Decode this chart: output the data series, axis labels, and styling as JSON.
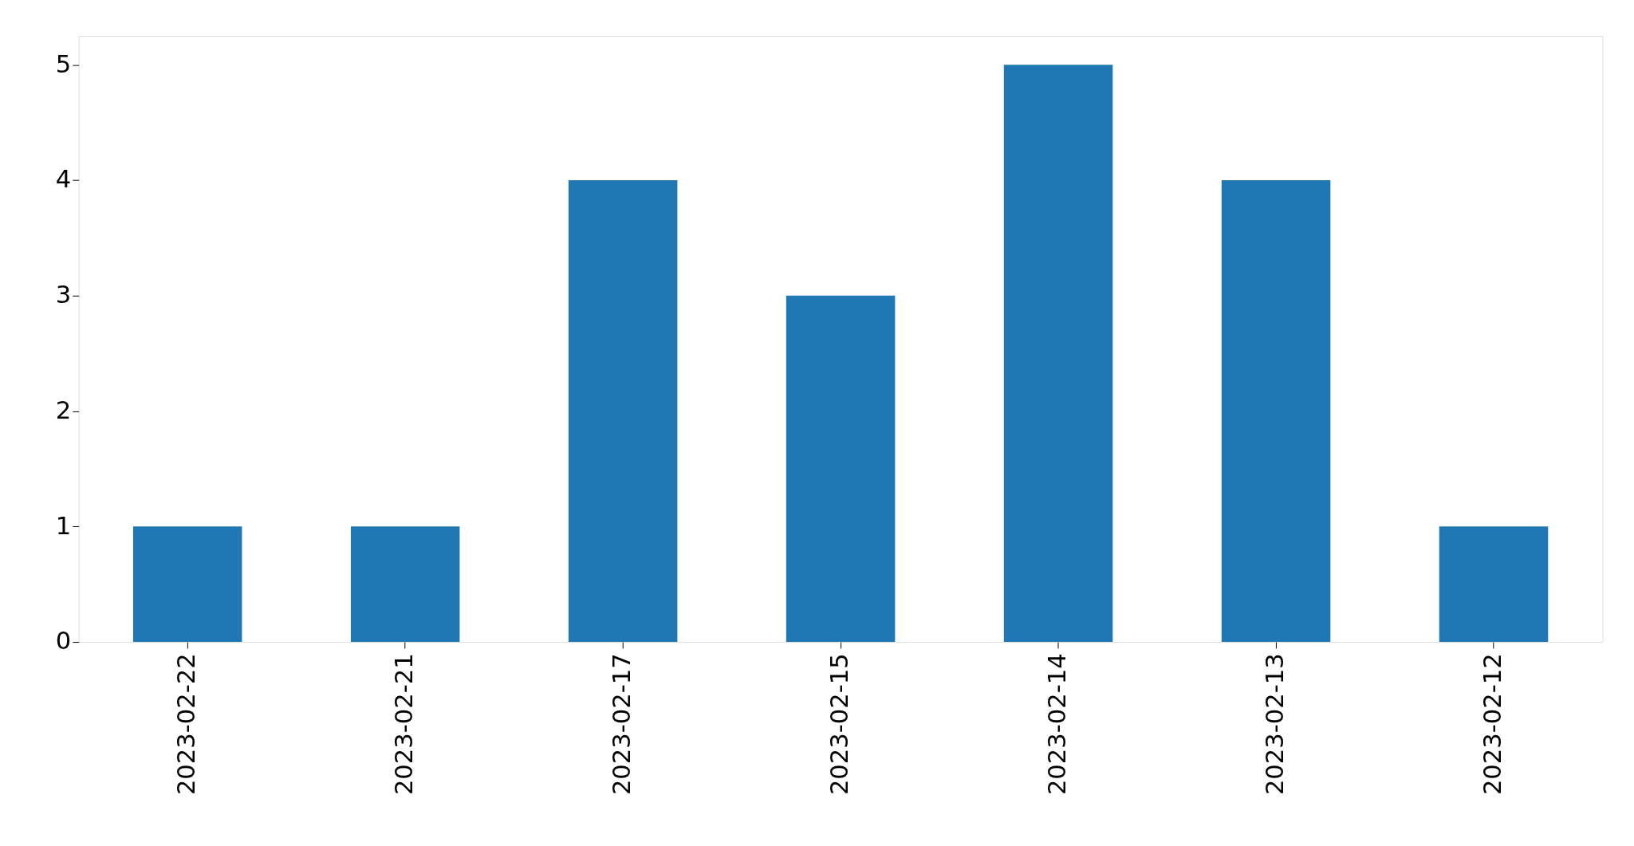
{
  "chart_data": {
    "type": "bar",
    "categories": [
      "2023-02-22",
      "2023-02-21",
      "2023-02-17",
      "2023-02-15",
      "2023-02-14",
      "2023-02-13",
      "2023-02-12"
    ],
    "values": [
      1,
      1,
      4,
      3,
      5,
      4,
      1
    ],
    "color": "#1f77b4",
    "ylim": [
      0,
      5.25
    ],
    "yticks": [
      0,
      1,
      2,
      3,
      4,
      5
    ],
    "grid": false
  }
}
